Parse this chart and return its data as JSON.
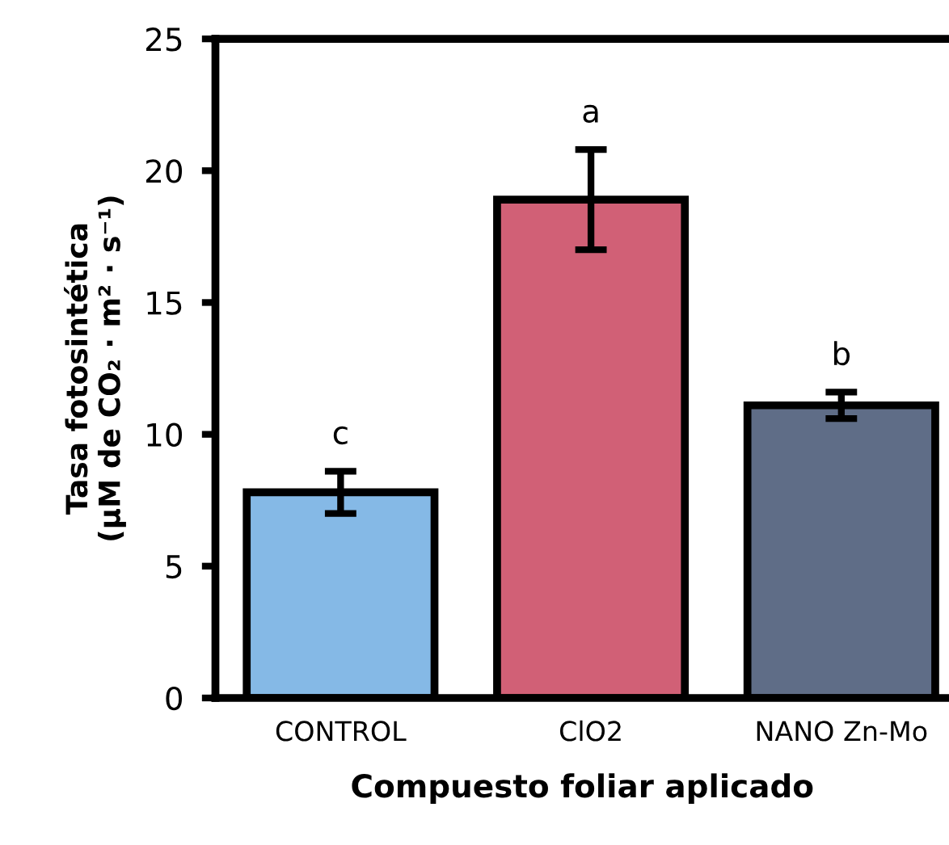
{
  "chart_data": {
    "type": "bar",
    "categories": [
      "CONTROL",
      "ClO2",
      "NANO Zn-Mo"
    ],
    "values": [
      7.8,
      18.9,
      11.1
    ],
    "errors": [
      0.8,
      1.9,
      0.5
    ],
    "colors": [
      "#85b9e6",
      "#d16076",
      "#5f6d87"
    ],
    "xlabel": "Compuesto foliar aplicado",
    "ylabel": "Tasa fotosintética\n(µM de CO₂ · m² · s⁻¹)",
    "ylim": [
      0,
      25
    ],
    "yticks": [
      0,
      5,
      10,
      15,
      20,
      25
    ],
    "annotations": [
      "c",
      "a",
      "b"
    ],
    "grid": false,
    "legend": false
  }
}
